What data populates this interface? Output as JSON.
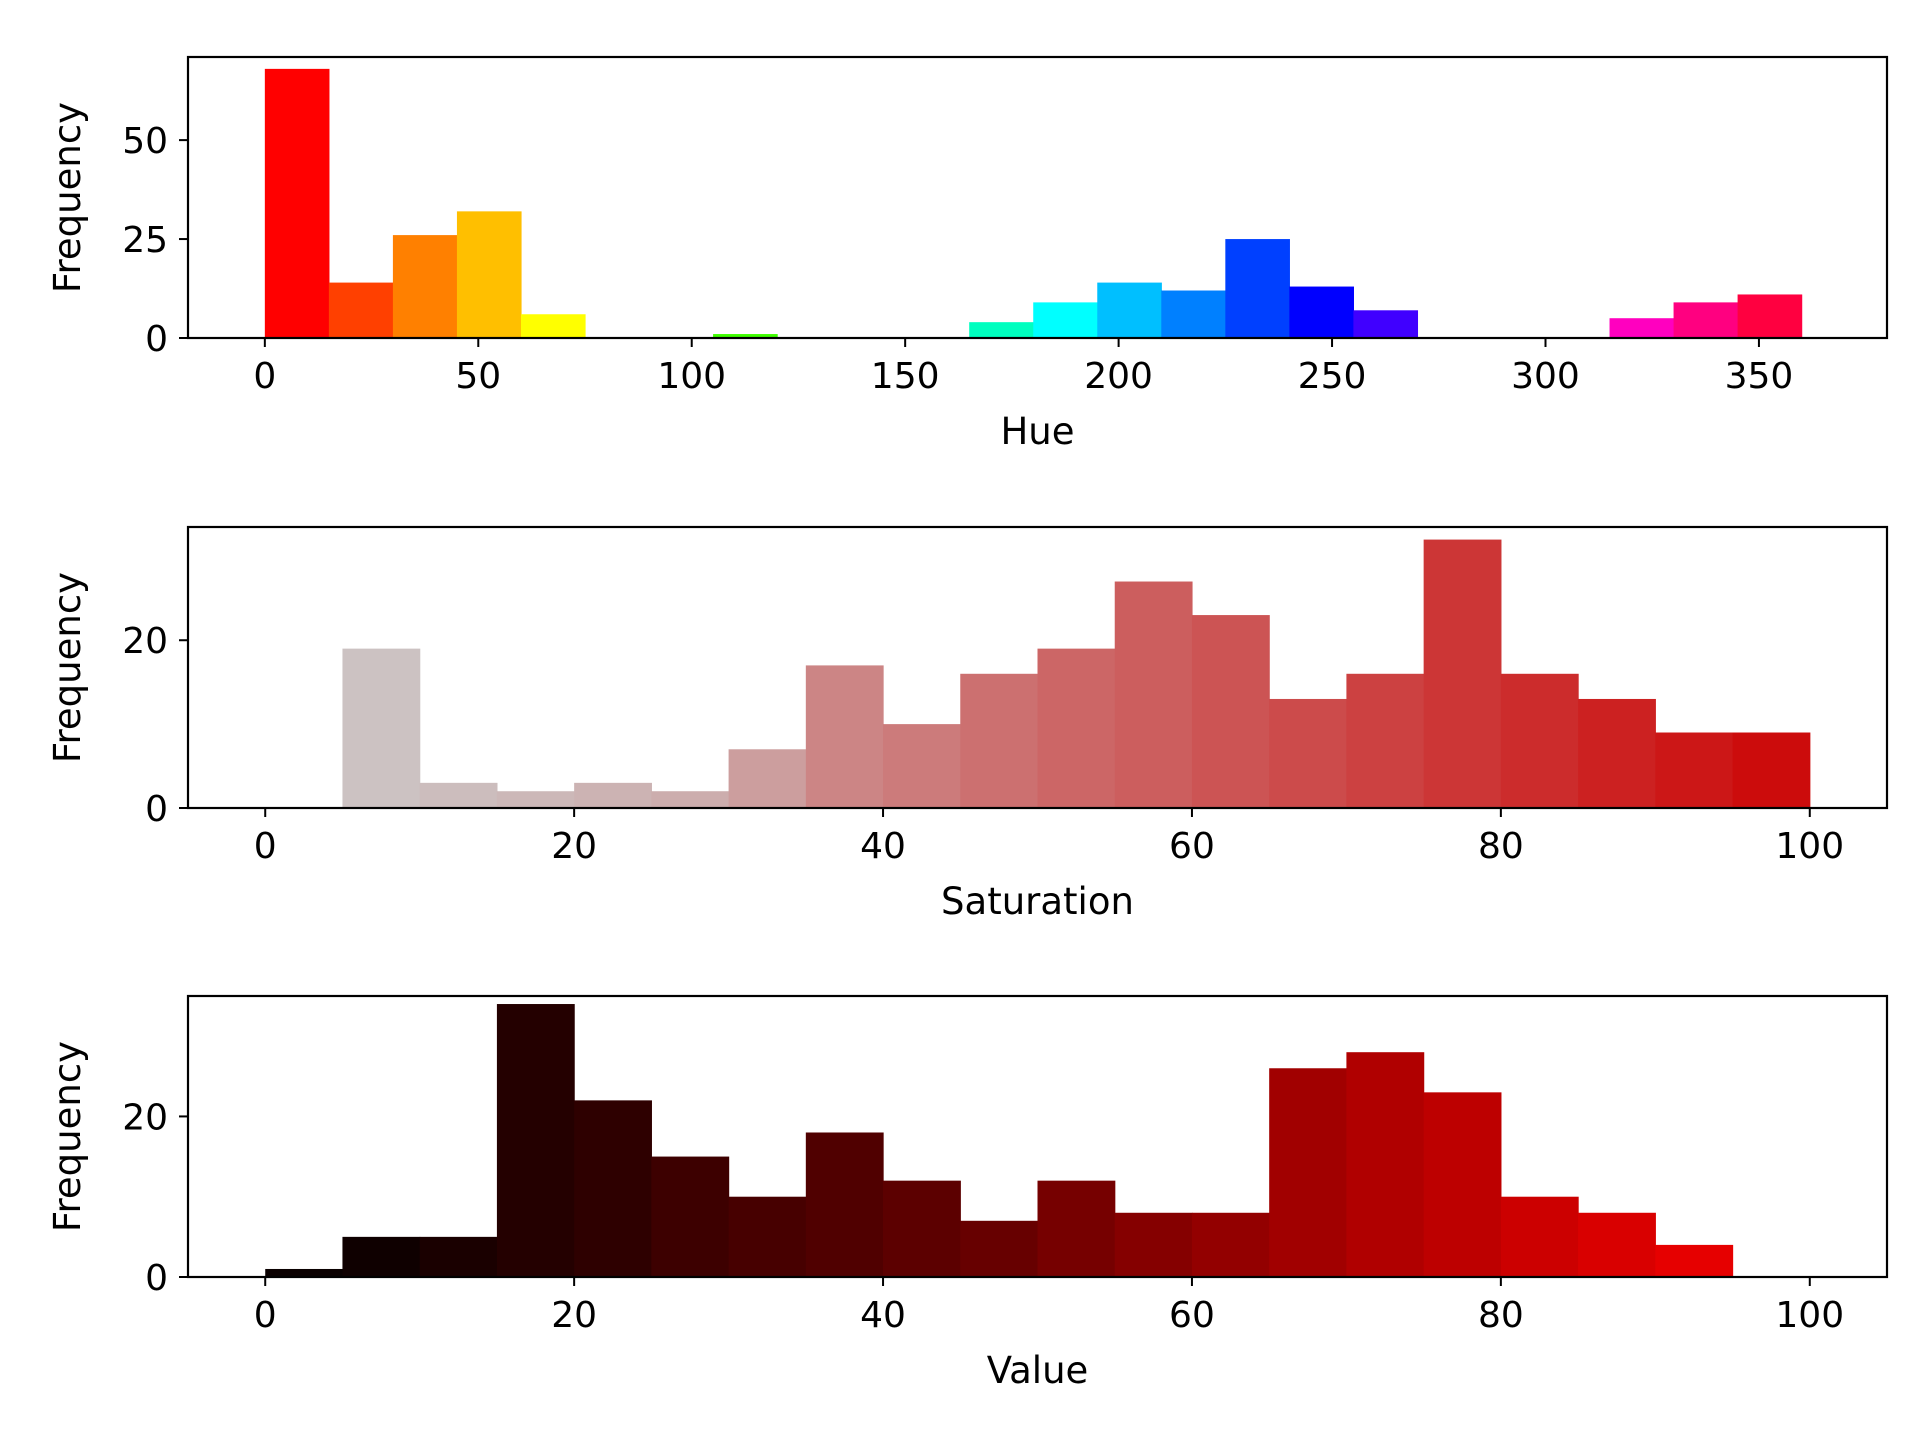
{
  "chart_data": [
    {
      "type": "bar",
      "subtype": "histogram",
      "xlabel": "Hue",
      "ylabel": "Frequency",
      "xlim": [
        -18,
        380
      ],
      "ylim": [
        0,
        71
      ],
      "xticks": [
        0,
        50,
        100,
        150,
        200,
        250,
        300,
        350
      ],
      "yticks": [
        0,
        25,
        50
      ],
      "bin_width": 15,
      "bins": [
        {
          "start": 0,
          "value": 68,
          "color": "#ff0000"
        },
        {
          "start": 15,
          "value": 14,
          "color": "#ff4000"
        },
        {
          "start": 30,
          "value": 26,
          "color": "#ff8000"
        },
        {
          "start": 45,
          "value": 32,
          "color": "#ffbf00"
        },
        {
          "start": 60,
          "value": 6,
          "color": "#ffff00"
        },
        {
          "start": 75,
          "value": 0,
          "color": "#bfff00"
        },
        {
          "start": 90,
          "value": 0,
          "color": "#80ff00"
        },
        {
          "start": 105,
          "value": 1,
          "color": "#40ff00"
        },
        {
          "start": 120,
          "value": 0,
          "color": "#00ff00"
        },
        {
          "start": 135,
          "value": 0,
          "color": "#00ff40"
        },
        {
          "start": 150,
          "value": 0,
          "color": "#00ff80"
        },
        {
          "start": 165,
          "value": 4,
          "color": "#00ffbf"
        },
        {
          "start": 180,
          "value": 9,
          "color": "#00ffff"
        },
        {
          "start": 195,
          "value": 14,
          "color": "#00bfff"
        },
        {
          "start": 210,
          "value": 12,
          "color": "#0080ff"
        },
        {
          "start": 225,
          "value": 25,
          "color": "#0040ff"
        },
        {
          "start": 240,
          "value": 13,
          "color": "#0000ff"
        },
        {
          "start": 255,
          "value": 7,
          "color": "#4000ff"
        },
        {
          "start": 270,
          "value": 0,
          "color": "#8000ff"
        },
        {
          "start": 285,
          "value": 0,
          "color": "#bf00ff"
        },
        {
          "start": 300,
          "value": 0,
          "color": "#ff00ff"
        },
        {
          "start": 315,
          "value": 5,
          "color": "#ff00bf"
        },
        {
          "start": 330,
          "value": 9,
          "color": "#ff0080"
        },
        {
          "start": 345,
          "value": 11,
          "color": "#ff0040"
        }
      ]
    },
    {
      "type": "bar",
      "subtype": "histogram",
      "xlabel": "Saturation",
      "ylabel": "Frequency",
      "xlim": [
        -5,
        105
      ],
      "ylim": [
        0,
        33.5
      ],
      "xticks": [
        0,
        20,
        40,
        60,
        80,
        100
      ],
      "yticks": [
        0,
        20
      ],
      "bin_width": 5,
      "bins": [
        {
          "start": 0,
          "value": 0,
          "color": "#ccc2c2"
        },
        {
          "start": 5,
          "value": 19,
          "color": "#ccc2c2"
        },
        {
          "start": 10,
          "value": 3,
          "color": "#ccbdbd"
        },
        {
          "start": 15,
          "value": 2,
          "color": "#ccb8b8"
        },
        {
          "start": 20,
          "value": 3,
          "color": "#ccb3b3"
        },
        {
          "start": 25,
          "value": 2,
          "color": "#ccadad"
        },
        {
          "start": 30,
          "value": 7,
          "color": "#cc9e9e"
        },
        {
          "start": 35,
          "value": 17,
          "color": "#cc8585"
        },
        {
          "start": 40,
          "value": 10,
          "color": "#cc7b7b"
        },
        {
          "start": 45,
          "value": 16,
          "color": "#cc7070"
        },
        {
          "start": 50,
          "value": 19,
          "color": "#cc6666"
        },
        {
          "start": 55,
          "value": 27,
          "color": "#cc5e5e"
        },
        {
          "start": 60,
          "value": 23,
          "color": "#cc5454"
        },
        {
          "start": 65,
          "value": 13,
          "color": "#cc4b4b"
        },
        {
          "start": 70,
          "value": 16,
          "color": "#cc4141"
        },
        {
          "start": 75,
          "value": 32,
          "color": "#cc3636"
        },
        {
          "start": 80,
          "value": 16,
          "color": "#cc2c2c"
        },
        {
          "start": 85,
          "value": 13,
          "color": "#cc2121"
        },
        {
          "start": 90,
          "value": 9,
          "color": "#cc1717"
        },
        {
          "start": 95,
          "value": 9,
          "color": "#cc0c0c"
        }
      ]
    },
    {
      "type": "bar",
      "subtype": "histogram",
      "xlabel": "Value",
      "ylabel": "Frequency",
      "xlim": [
        -5,
        105
      ],
      "ylim": [
        0,
        35
      ],
      "xticks": [
        0,
        20,
        40,
        60,
        80,
        100
      ],
      "yticks": [
        0,
        20
      ],
      "bin_width": 5,
      "bins": [
        {
          "start": 0,
          "value": 1,
          "color": "#0a0000"
        },
        {
          "start": 5,
          "value": 5,
          "color": "#0f0000"
        },
        {
          "start": 10,
          "value": 5,
          "color": "#1a0000"
        },
        {
          "start": 15,
          "value": 34,
          "color": "#240000"
        },
        {
          "start": 20,
          "value": 22,
          "color": "#2e0000"
        },
        {
          "start": 25,
          "value": 15,
          "color": "#3d0000"
        },
        {
          "start": 30,
          "value": 10,
          "color": "#470000"
        },
        {
          "start": 35,
          "value": 18,
          "color": "#500000"
        },
        {
          "start": 40,
          "value": 12,
          "color": "#5c0000"
        },
        {
          "start": 45,
          "value": 7,
          "color": "#670000"
        },
        {
          "start": 50,
          "value": 12,
          "color": "#760000"
        },
        {
          "start": 55,
          "value": 8,
          "color": "#850000"
        },
        {
          "start": 60,
          "value": 8,
          "color": "#930000"
        },
        {
          "start": 65,
          "value": 26,
          "color": "#a10000"
        },
        {
          "start": 70,
          "value": 28,
          "color": "#b00000"
        },
        {
          "start": 75,
          "value": 23,
          "color": "#bd0000"
        },
        {
          "start": 80,
          "value": 10,
          "color": "#cc0000"
        },
        {
          "start": 85,
          "value": 8,
          "color": "#d90000"
        },
        {
          "start": 90,
          "value": 4,
          "color": "#e60000"
        },
        {
          "start": 95,
          "value": 0,
          "color": "#f20000"
        }
      ]
    }
  ]
}
